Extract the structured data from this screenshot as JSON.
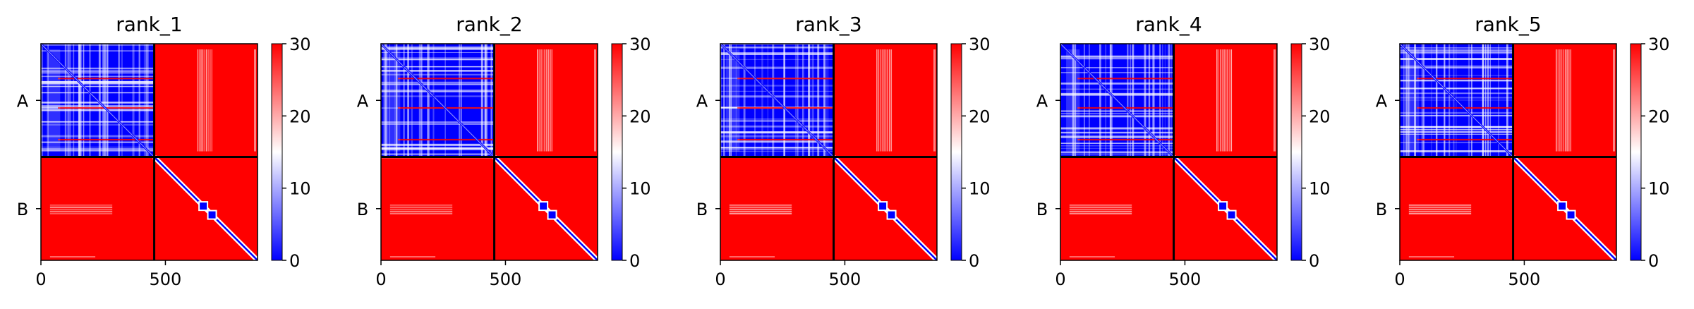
{
  "chart_data": [
    {
      "type": "heatmap",
      "title": "rank_1",
      "chains": [
        "A",
        "B"
      ],
      "chain_boundary": 455,
      "length": 870,
      "x_ticks": [
        0,
        500
      ],
      "colorbar_ticks": [
        0,
        10,
        20,
        30
      ],
      "clim": [
        0,
        30
      ],
      "colormap": [
        "#0000ff",
        "#ffffff",
        "#ff0000"
      ]
    },
    {
      "type": "heatmap",
      "title": "rank_2",
      "chains": [
        "A",
        "B"
      ],
      "chain_boundary": 455,
      "length": 870,
      "x_ticks": [
        0,
        500
      ],
      "colorbar_ticks": [
        0,
        10,
        20,
        30
      ],
      "clim": [
        0,
        30
      ],
      "colormap": [
        "#0000ff",
        "#ffffff",
        "#ff0000"
      ]
    },
    {
      "type": "heatmap",
      "title": "rank_3",
      "chains": [
        "A",
        "B"
      ],
      "chain_boundary": 455,
      "length": 870,
      "x_ticks": [
        0,
        500
      ],
      "colorbar_ticks": [
        0,
        10,
        20,
        30
      ],
      "clim": [
        0,
        30
      ],
      "colormap": [
        "#0000ff",
        "#ffffff",
        "#ff0000"
      ]
    },
    {
      "type": "heatmap",
      "title": "rank_4",
      "chains": [
        "A",
        "B"
      ],
      "chain_boundary": 455,
      "length": 870,
      "x_ticks": [
        0,
        500
      ],
      "colorbar_ticks": [
        0,
        10,
        20,
        30
      ],
      "clim": [
        0,
        30
      ],
      "colormap": [
        "#0000ff",
        "#ffffff",
        "#ff0000"
      ]
    },
    {
      "type": "heatmap",
      "title": "rank_5",
      "chains": [
        "A",
        "B"
      ],
      "chain_boundary": 455,
      "length": 870,
      "x_ticks": [
        0,
        500
      ],
      "colorbar_ticks": [
        0,
        10,
        20,
        30
      ],
      "clim": [
        0,
        30
      ],
      "colormap": [
        "#0000ff",
        "#ffffff",
        "#ff0000"
      ]
    }
  ]
}
